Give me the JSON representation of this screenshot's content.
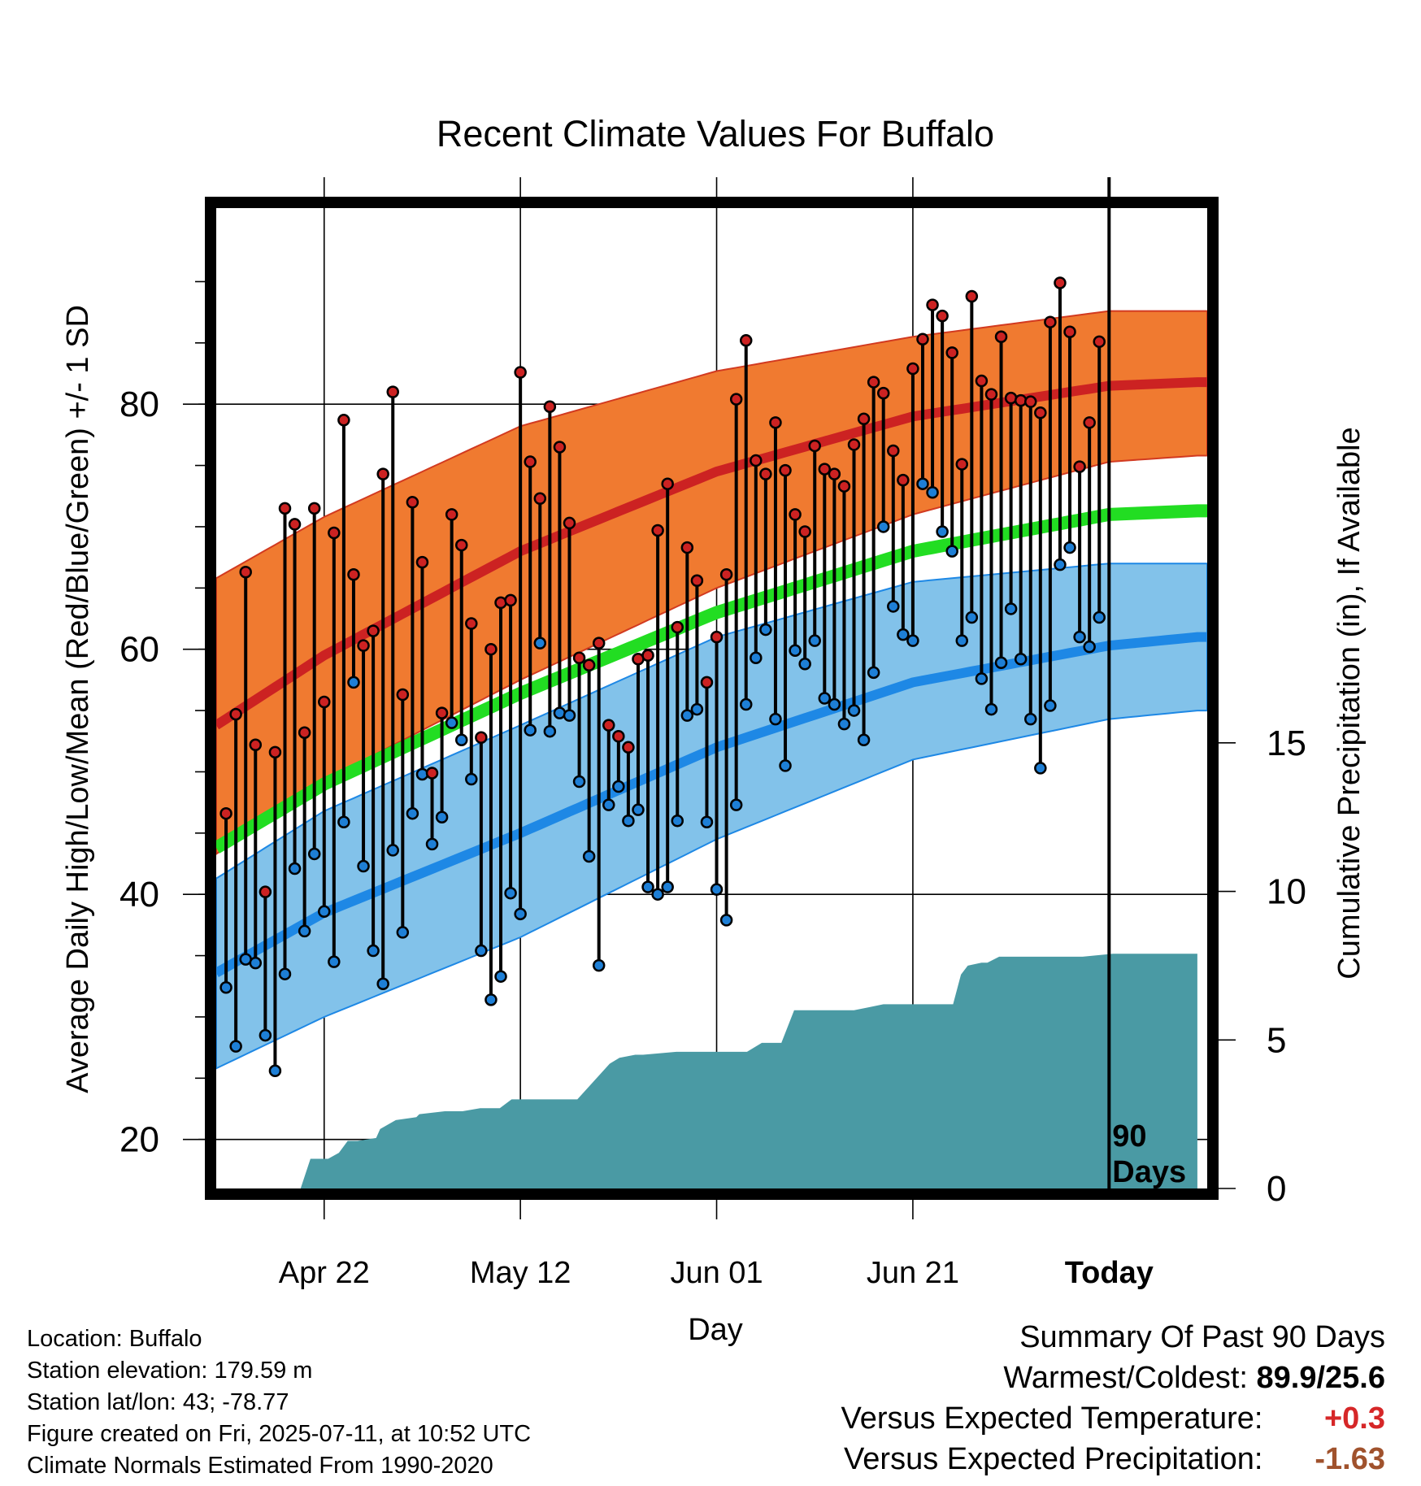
{
  "chart_data": {
    "type": "line",
    "title": "Recent Climate Values For Buffalo",
    "xlabel": "Day",
    "ylabel": "Average Daily High/Low/Mean (Red/Blue/Green) +/- 1 SD",
    "y2label": "Cumulative Precipitation (in), If Available",
    "ylim": [
      16,
      96
    ],
    "y_ticks": [
      20,
      40,
      60,
      80
    ],
    "y2lim": [
      0,
      33
    ],
    "y2_ticks": [
      0,
      5,
      10,
      15
    ],
    "x_ticks": [
      "Apr 22",
      "May 12",
      "Jun 01",
      "Jun 21",
      "Today"
    ],
    "x_tick_days": [
      10,
      30,
      50,
      70,
      90
    ],
    "xlim": [
      -1,
      100
    ],
    "today_label": [
      "90",
      "Days"
    ],
    "colors": {
      "high": "#cc2222",
      "low": "#1e88e5",
      "mean": "#22dd22",
      "high_band": "#f07a30",
      "low_band": "#82c2ea",
      "precip": "#4a9aa4",
      "high_dot": "#cc2222",
      "low_dot": "#1e7fd6"
    },
    "normals": {
      "day": [
        -1,
        10,
        30,
        50,
        70,
        90,
        99
      ],
      "high_mean": [
        53.8,
        59.5,
        68.0,
        74.5,
        79.0,
        81.5,
        81.8
      ],
      "high_upper": [
        65.8,
        70.8,
        78.2,
        82.7,
        85.5,
        87.6,
        87.6
      ],
      "high_lower": [
        43.3,
        49.3,
        57.5,
        65.0,
        71.0,
        75.3,
        75.8
      ],
      "mean": [
        43.8,
        49.0,
        56.4,
        63.0,
        68.0,
        71.0,
        71.3
      ],
      "low_mean": [
        33.6,
        38.5,
        45.0,
        52.0,
        57.3,
        60.3,
        61.0
      ],
      "low_upper": [
        41.3,
        46.8,
        53.8,
        61.0,
        65.5,
        67.0,
        67.0
      ],
      "low_lower": [
        25.8,
        30.0,
        36.5,
        44.5,
        51.0,
        54.3,
        55.0
      ]
    },
    "series": [
      {
        "name": "High",
        "values": [
          46.6,
          54.7,
          66.3,
          52.2,
          40.2,
          51.6,
          71.5,
          70.2,
          53.2,
          71.5,
          55.7,
          69.5,
          78.7,
          66.1,
          60.3,
          61.5,
          74.3,
          81.0,
          56.3,
          72.0,
          67.1,
          49.9,
          54.8,
          71.0,
          68.5,
          62.1,
          52.8,
          60.0,
          63.8,
          64.0,
          82.6,
          75.3,
          72.3,
          79.8,
          76.5,
          70.3,
          59.3,
          58.7,
          60.5,
          53.8,
          52.9,
          52.0,
          59.2,
          59.5,
          69.7,
          73.5,
          61.8,
          68.3,
          65.6,
          57.3,
          61.0,
          66.1,
          80.4,
          85.2,
          75.4,
          74.3,
          78.5,
          74.6,
          71.0,
          69.6,
          76.6,
          74.7,
          74.3,
          73.3,
          76.7,
          78.8,
          81.8,
          80.9,
          76.2,
          73.8,
          82.9,
          85.3,
          88.1,
          87.2,
          84.2,
          75.1,
          88.8,
          81.9,
          80.8,
          85.5,
          80.5,
          80.3,
          80.2,
          79.3,
          86.7,
          89.9,
          85.9,
          74.9,
          78.5,
          85.1
        ]
      },
      {
        "name": "Low",
        "values": [
          32.4,
          27.6,
          34.7,
          34.4,
          28.5,
          25.6,
          33.5,
          42.1,
          37.0,
          43.3,
          38.6,
          34.5,
          45.9,
          57.3,
          42.3,
          35.4,
          32.7,
          43.6,
          36.9,
          46.6,
          49.8,
          44.1,
          46.3,
          54.0,
          52.6,
          49.4,
          35.4,
          31.4,
          33.3,
          40.1,
          38.4,
          53.4,
          60.5,
          53.3,
          54.8,
          54.6,
          49.2,
          43.1,
          34.2,
          47.3,
          48.8,
          46.0,
          46.9,
          40.6,
          40.0,
          40.6,
          46.0,
          54.6,
          55.1,
          45.9,
          40.4,
          37.9,
          47.3,
          55.5,
          59.3,
          61.6,
          54.3,
          50.5,
          59.9,
          58.8,
          60.7,
          56.0,
          55.5,
          53.9,
          55.0,
          52.6,
          58.1,
          70.0,
          63.5,
          61.2,
          60.7,
          73.5,
          72.8,
          69.6,
          68.0,
          60.7,
          62.6,
          57.6,
          55.1,
          58.9,
          63.3,
          59.2,
          54.3,
          50.3,
          55.4,
          66.9,
          68.3,
          61.0,
          60.2,
          62.6
        ]
      }
    ],
    "precip": {
      "day": [
        -1,
        7.6,
        8.6,
        10.4,
        11.5,
        12.4,
        13.4,
        15.3,
        15.7,
        17.3,
        19.4,
        19.7,
        22.3,
        24.1,
        25.9,
        27.9,
        29.1,
        34.9,
        35.8,
        39.1,
        40.1,
        41.7,
        42.5,
        45.9,
        46.8,
        49.1,
        53.1,
        54.6,
        56.6,
        57.9,
        60.0,
        61.5,
        64.0,
        65.5,
        67.0,
        68.0,
        68.8,
        72.1,
        73.0,
        74.1,
        74.9,
        75.6,
        77.0,
        77.6,
        78.8,
        79.4,
        80.4,
        81.3,
        87.3,
        90.4,
        93.2,
        96.4,
        99
      ],
      "cumulative": [
        0,
        0,
        1.0,
        1.0,
        1.2,
        1.6,
        1.6,
        1.7,
        2.0,
        2.3,
        2.4,
        2.5,
        2.6,
        2.6,
        2.7,
        2.7,
        3.0,
        3.0,
        3.0,
        4.2,
        4.4,
        4.5,
        4.5,
        4.6,
        4.6,
        4.6,
        4.6,
        4.9,
        4.9,
        6.0,
        6.0,
        6.0,
        6.0,
        6.1,
        6.2,
        6.2,
        6.2,
        6.2,
        6.2,
        6.2,
        7.2,
        7.5,
        7.6,
        7.6,
        7.8,
        7.8,
        7.8,
        7.8,
        7.8,
        7.9,
        7.9,
        7.9,
        7.9
      ]
    }
  },
  "footer": {
    "location": "Location: Buffalo",
    "elevation": "Station elevation: 179.59 m",
    "latlon": "Station lat/lon: 43; -78.77",
    "created": "Figure created on Fri, 2025-07-11, at 10:52 UTC",
    "normals": "Climate Normals Estimated From 1990-2020"
  },
  "summary": {
    "title": "Summary Of Past 90 Days",
    "warm_cold_label": "Warmest/Coldest:",
    "warm_cold_value": "89.9/25.6",
    "temp_label": "Versus Expected Temperature:",
    "temp_value": "+0.3",
    "temp_color": "#d62728",
    "precip_label": "Versus Expected Precipitation:",
    "precip_value": "-1.63",
    "precip_color": "#a0522d"
  }
}
